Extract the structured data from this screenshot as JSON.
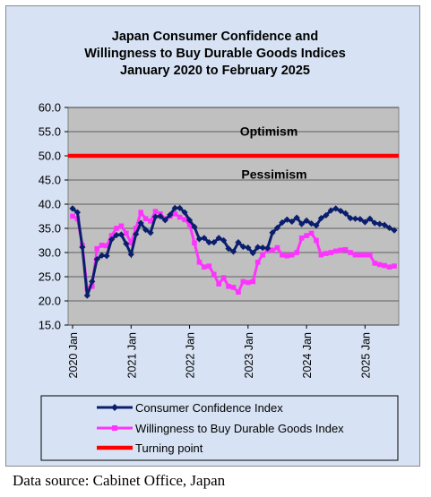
{
  "chart_data": {
    "type": "line",
    "title_lines": [
      "Japan Consumer Confidence and",
      "Willingness to Buy Durable Goods Indices",
      "January 2020 to February 2025"
    ],
    "ylim": [
      15.0,
      60.0
    ],
    "y_ticks": [
      15,
      20,
      25,
      30,
      35,
      40,
      45,
      50,
      55,
      60
    ],
    "y_tick_labels": [
      "15.0",
      "20.0",
      "25.0",
      "30.0",
      "35.0",
      "40.0",
      "45.0",
      "50.0",
      "55.0",
      "60.0"
    ],
    "x_tick_labels": [
      "2020 Jan",
      "2021 Jan",
      "2022 Jan",
      "2023 Jan",
      "2024 Jan",
      "2025 Jan"
    ],
    "annotations": [
      "Optimism",
      "Pessimism"
    ],
    "grid": true,
    "legend_position": "bottom",
    "series": [
      {
        "name": "Consumer Confidence Index",
        "color": "#0b1e6e",
        "values": [
          39.1,
          38.3,
          31.1,
          21.1,
          24.0,
          28.6,
          29.4,
          29.3,
          32.7,
          33.6,
          33.7,
          31.8,
          29.6,
          33.8,
          36.1,
          34.7,
          34.1,
          37.4,
          37.5,
          36.7,
          37.8,
          39.2,
          39.2,
          38.3,
          36.7,
          35.3,
          32.8,
          33.0,
          32.1,
          32.1,
          33.0,
          32.5,
          30.8,
          30.2,
          32.1,
          31.2,
          31.0,
          29.9,
          31.1,
          31.0,
          30.9,
          34.1,
          35.1,
          36.2,
          36.8,
          36.4,
          37.2,
          35.9,
          36.6,
          36.0,
          35.6,
          37.1,
          37.7,
          38.7,
          39.1,
          38.6,
          38.1,
          37.1,
          37.0,
          36.9,
          36.3,
          37.0,
          36.1,
          35.9,
          35.7,
          35.1,
          34.6
        ]
      },
      {
        "name": "Willingness to Buy Durable Goods Index",
        "color": "#ff33ff",
        "values": [
          37.5,
          37.0,
          31.5,
          22.5,
          23.0,
          30.8,
          31.5,
          31.4,
          33.5,
          35.0,
          35.5,
          34.0,
          32.0,
          35.0,
          38.3,
          37.0,
          36.5,
          38.5,
          38.0,
          37.0,
          37.5,
          38.0,
          37.3,
          36.8,
          35.8,
          32.0,
          28.0,
          27.0,
          27.2,
          25.5,
          23.5,
          24.8,
          23.0,
          22.8,
          21.8,
          24.0,
          23.8,
          24.0,
          28.0,
          29.5,
          30.5,
          30.5,
          31.0,
          29.5,
          29.3,
          29.5,
          30.0,
          33.0,
          33.5,
          34.0,
          32.5,
          29.5,
          29.8,
          30.0,
          30.3,
          30.5,
          30.6,
          30.0,
          29.5,
          29.5,
          29.5,
          29.5,
          27.8,
          27.5,
          27.3,
          27.0,
          27.2
        ]
      },
      {
        "name": "Turning point",
        "color": "#ff0000",
        "values": [
          50.0,
          50.0
        ]
      }
    ]
  },
  "source_note": "Data source: Cabinet Office, Japan"
}
